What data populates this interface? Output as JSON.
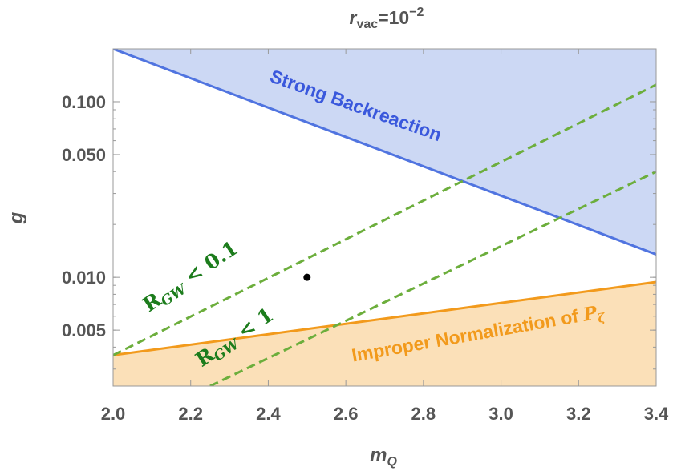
{
  "chart_data": {
    "type": "line",
    "title": "r_vac=10^-2",
    "title_parts": {
      "main": "r",
      "sub": "vac",
      "mid": "=10",
      "sup": "−2"
    },
    "xlabel_parts": {
      "main": "m",
      "sub": "Q"
    },
    "ylabel": "g",
    "xlim": [
      2.0,
      3.4
    ],
    "ylim": [
      0.0024,
      0.2
    ],
    "yscale": "log",
    "frame": true,
    "grid": false,
    "x_ticks": [
      2.0,
      2.2,
      2.4,
      2.6,
      2.8,
      3.0,
      3.2,
      3.4
    ],
    "x_tick_labels": [
      "2.0",
      "2.2",
      "2.4",
      "2.6",
      "2.8",
      "3.0",
      "3.2",
      "3.4"
    ],
    "y_ticks": [
      0.005,
      0.01,
      0.05,
      0.1
    ],
    "y_tick_labels": [
      "0.005",
      "0.010",
      "0.050",
      "0.100"
    ],
    "series": [
      {
        "name": "Strong Backreaction",
        "style": "solid",
        "color": "#5074e0",
        "fill": "above",
        "fill_color": "#ccd8f4",
        "x": [
          2.0,
          3.4
        ],
        "y": [
          0.2,
          0.0135
        ]
      },
      {
        "name": "Improper Normalization of P_ζ",
        "style": "solid",
        "color": "#f29a1c",
        "fill": "below",
        "fill_color": "#fbe0b8",
        "x": [
          2.0,
          3.4
        ],
        "y": [
          0.0036,
          0.0094
        ]
      },
      {
        "name": "R_GW < 0.1",
        "style": "dashed",
        "color": "#6cae3c",
        "x": [
          2.0,
          3.4
        ],
        "y": [
          0.0036,
          0.125
        ]
      },
      {
        "name": "R_GW < 1",
        "style": "dashed",
        "color": "#6cae3c",
        "x": [
          2.25,
          3.4
        ],
        "y": [
          0.0024,
          0.04
        ]
      }
    ],
    "points": [
      {
        "x": 2.5,
        "y": 0.01,
        "color": "#000000"
      }
    ],
    "annotations": {
      "backreaction": {
        "text": "Strong Backreaction",
        "color": "#3a58dc"
      },
      "normalization": {
        "text": "Improper Normalization of",
        "symbol": "P",
        "symbol_sub": "ζ",
        "color": "#f29a1c"
      },
      "rgw01": {
        "main": "R",
        "sub": "GW",
        "rest": " < 0.1"
      },
      "rgw1": {
        "main": "R",
        "sub": "GW",
        "rest": " < 1"
      }
    }
  }
}
